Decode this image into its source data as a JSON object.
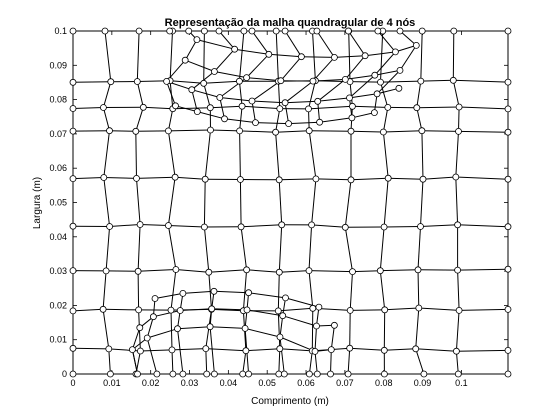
{
  "chart_data": {
    "type": "scatter",
    "title": "Representação da malha quandragular de 4 nós",
    "xlabel": "Comprimento (m)",
    "ylabel": "Largura (m)",
    "xlim": [
      0,
      0.112
    ],
    "ylim": [
      0,
      0.1
    ],
    "xticks": [
      0,
      0.01,
      0.02,
      0.03,
      0.04,
      0.05,
      0.06,
      0.07,
      0.08,
      0.09,
      0.1
    ],
    "xtick_labels": [
      "0",
      "0.01",
      "0.02",
      "0.03",
      "0.04",
      "0.05",
      "0.06",
      "0.07",
      "0.08",
      "0.09",
      "0.1"
    ],
    "yticks": [
      0,
      0.01,
      0.02,
      0.03,
      0.04,
      0.05,
      0.06,
      0.07,
      0.08,
      0.09,
      0.1
    ],
    "ytick_labels": [
      "0",
      "0.01",
      "0.02",
      "0.03",
      "0.04",
      "0.05",
      "0.06",
      "0.07",
      "0.08",
      "0.09",
      "0.1"
    ],
    "grid": false,
    "marker": "open-circle",
    "mesh_columns_x": [
      0,
      0.0087,
      0.0172,
      0.0256,
      0.0347,
      0.0438,
      0.0527,
      0.0616,
      0.0712,
      0.0801,
      0.0893,
      0.0985,
      0.112
    ],
    "mesh_rows_y": [
      0,
      0.0071,
      0.0188,
      0.0301,
      0.0432,
      0.057,
      0.0707,
      0.0777,
      0.0852,
      0.1
    ],
    "bottom_arch_rows": [
      {
        "x": [
          0.0153,
          0.0191,
          0.0269,
          0.0353,
          0.0443,
          0.0533,
          0.0623,
          0.0665
        ],
        "y": [
          0.0071,
          0.0105,
          0.0132,
          0.0138,
          0.0133,
          0.0108,
          0.0066,
          0.0071
        ]
      },
      {
        "x": [
          0.0172,
          0.0207,
          0.0276,
          0.0357,
          0.0448,
          0.054,
          0.0627,
          0.0673
        ],
        "y": [
          0.0135,
          0.0167,
          0.0185,
          0.019,
          0.0187,
          0.017,
          0.014,
          0.0142
        ]
      },
      {
        "x": [
          0.0211,
          0.0283,
          0.0363,
          0.0452,
          0.0547,
          0.0633
        ],
        "y": [
          0.022,
          0.0235,
          0.0241,
          0.0237,
          0.0222,
          0.0195
        ]
      }
    ],
    "bottom_arch_base_x": [
      0.0166,
      0.0216,
      0.0283,
      0.0364,
      0.0452,
      0.0544,
      0.0629,
      0.0663
    ],
    "top_arch_rows": [
      {
        "x": [
          0.0264,
          0.032,
          0.039,
          0.047,
          0.0555,
          0.0635,
          0.0718,
          0.0776
        ],
        "y": [
          0.0782,
          0.0765,
          0.0744,
          0.0733,
          0.073,
          0.0734,
          0.0747,
          0.0762
        ]
      },
      {
        "x": [
          0.0241,
          0.0306,
          0.0378,
          0.0461,
          0.0546,
          0.063,
          0.0712,
          0.0783,
          0.0839
        ],
        "y": [
          0.0853,
          0.0829,
          0.0806,
          0.0796,
          0.0791,
          0.0795,
          0.0805,
          0.0817,
          0.0833
        ]
      },
      {
        "x": [
          0.0289,
          0.0364,
          0.0447,
          0.0535,
          0.0618,
          0.0701,
          0.0777,
          0.0842
        ],
        "y": [
          0.0915,
          0.0882,
          0.0864,
          0.0855,
          0.0854,
          0.0859,
          0.0871,
          0.0885
        ]
      },
      {
        "x": [
          0.0319,
          0.0416,
          0.0504,
          0.0588,
          0.0673,
          0.0752,
          0.083,
          0.0884
        ],
        "y": [
          0.0975,
          0.0947,
          0.0932,
          0.0925,
          0.0923,
          0.0928,
          0.0939,
          0.0958
        ]
      }
    ],
    "top_arch_boundary_x": [
      0.0249,
      0.0298,
      0.0376,
      0.0461,
      0.0546,
      0.0628,
      0.0709,
      0.0785,
      0.0842
    ]
  }
}
